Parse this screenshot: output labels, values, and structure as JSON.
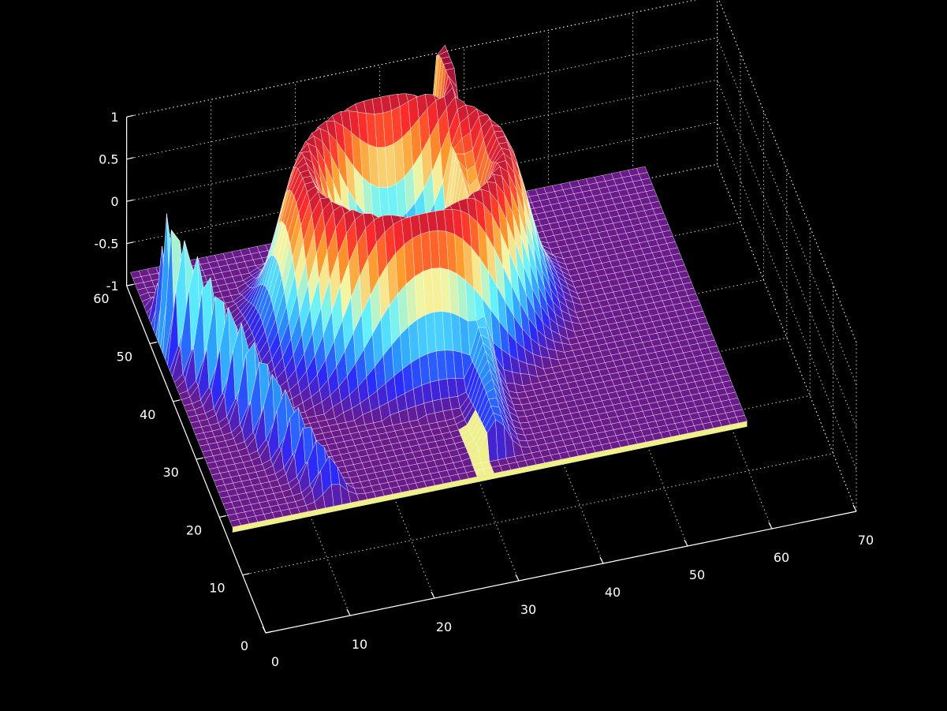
{
  "chart_data": {
    "type": "surface",
    "title": "",
    "xlabel": "",
    "ylabel": "",
    "zlabel": "",
    "xlim": [
      0,
      70
    ],
    "ylim": [
      0,
      60
    ],
    "zlim": [
      -1,
      1
    ],
    "grid": true,
    "background": "#000000",
    "grid_color": "#ffffff",
    "axis_color": "#ffffff",
    "edge_color": "#ffffff",
    "floor_color": "#6a1a8a",
    "rim_color": "#f0f08a",
    "colormap": [
      "#6a1a8a",
      "#2a2aff",
      "#2aa0ff",
      "#5ff2ff",
      "#f5f5a0",
      "#ff9a2a",
      "#ff2a2a",
      "#a0103a"
    ],
    "x_ticks": [
      {
        "value": 0,
        "label": "0"
      },
      {
        "value": 10,
        "label": "10"
      },
      {
        "value": 20,
        "label": "20"
      },
      {
        "value": 30,
        "label": "30"
      },
      {
        "value": 40,
        "label": "40"
      },
      {
        "value": 50,
        "label": "50"
      },
      {
        "value": 60,
        "label": "60"
      },
      {
        "value": 70,
        "label": "70"
      }
    ],
    "y_ticks": [
      {
        "value": 0,
        "label": "0"
      },
      {
        "value": 10,
        "label": "10"
      },
      {
        "value": 20,
        "label": "20"
      },
      {
        "value": 30,
        "label": "30"
      },
      {
        "value": 40,
        "label": "40"
      },
      {
        "value": 50,
        "label": "50"
      },
      {
        "value": 60,
        "label": "60"
      }
    ],
    "z_ticks": [
      {
        "value": -1,
        "label": "-1"
      },
      {
        "value": -0.5,
        "label": "-0.5"
      },
      {
        "value": 0,
        "label": "0"
      },
      {
        "value": 0.5,
        "label": "0.5"
      },
      {
        "value": 1,
        "label": "1"
      }
    ],
    "surface": {
      "x_range": [
        1,
        62
      ],
      "y_range": [
        18,
        62
      ],
      "base_z": -1,
      "channel_x": 31
    }
  }
}
